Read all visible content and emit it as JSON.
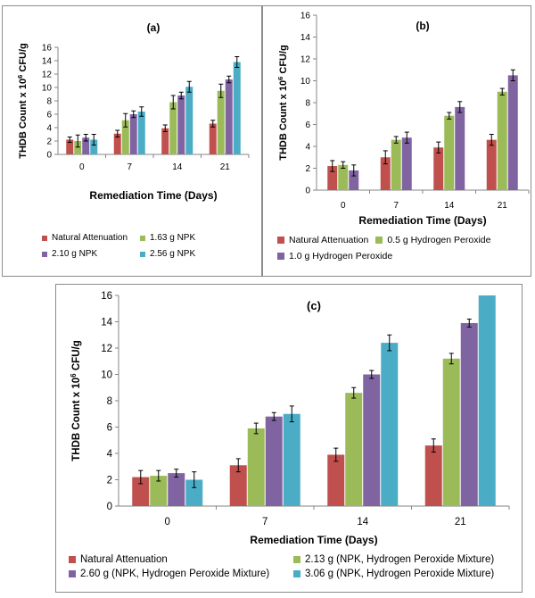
{
  "colors": {
    "red": "#c0504d",
    "green": "#9bbb59",
    "purple": "#8064a2",
    "cyan": "#4bacc6",
    "axis": "#868686",
    "errorbar": "#000000"
  },
  "chart_data": [
    {
      "id": "a",
      "type": "bar",
      "title": "(a)",
      "xlabel": "Remediation Time (Days)",
      "ylabel_prefix": "THDB Count x 10",
      "ylabel_exponent": "6",
      "ylabel_suffix": " CFU/g",
      "categories": [
        "0",
        "7",
        "14",
        "21"
      ],
      "ylim": [
        0,
        16
      ],
      "yticks": [
        "0",
        "2",
        "4",
        "6",
        "8",
        "10",
        "12",
        "14",
        "16"
      ],
      "grid": false,
      "legend_position": "bottom",
      "series": [
        {
          "name": "Natural Attenuation",
          "color": "red",
          "values": [
            2.2,
            3.1,
            3.9,
            4.6
          ],
          "errors": [
            0.4,
            0.5,
            0.5,
            0.5
          ]
        },
        {
          "name": "1.63 g NPK",
          "color": "green",
          "values": [
            2.0,
            5.1,
            7.8,
            9.5
          ],
          "errors": [
            0.9,
            1.0,
            1.0,
            1.0
          ]
        },
        {
          "name": "2.10 g NPK",
          "color": "purple",
          "values": [
            2.5,
            6.0,
            8.8,
            11.2
          ],
          "errors": [
            0.5,
            0.5,
            0.5,
            0.5
          ]
        },
        {
          "name": "2.56 g NPK",
          "color": "cyan",
          "values": [
            2.2,
            6.4,
            10.1,
            13.8
          ],
          "errors": [
            0.8,
            0.7,
            0.8,
            0.8
          ]
        }
      ]
    },
    {
      "id": "b",
      "type": "bar",
      "title": "(b)",
      "xlabel": "Remediation Time (Days)",
      "ylabel_prefix": "THDB Count x 10",
      "ylabel_exponent": "6",
      "ylabel_suffix": " CFU/g",
      "categories": [
        "0",
        "7",
        "14",
        "21"
      ],
      "ylim": [
        0,
        16
      ],
      "yticks": [
        "0",
        "2",
        "4",
        "6",
        "8",
        "10",
        "12",
        "14",
        "16"
      ],
      "grid": false,
      "legend_position": "bottom",
      "series": [
        {
          "name": "Natural Attenuation",
          "color": "red",
          "values": [
            2.2,
            3.0,
            3.9,
            4.6
          ],
          "errors": [
            0.5,
            0.6,
            0.5,
            0.5
          ]
        },
        {
          "name": "0.5 g Hydrogen Peroxide",
          "color": "green",
          "values": [
            2.3,
            4.6,
            6.8,
            9.0
          ],
          "errors": [
            0.3,
            0.3,
            0.3,
            0.3
          ]
        },
        {
          "name": "1.0 g Hydrogen Peroxide",
          "color": "purple",
          "values": [
            1.8,
            4.8,
            7.6,
            10.5
          ],
          "errors": [
            0.5,
            0.5,
            0.5,
            0.5
          ]
        }
      ]
    },
    {
      "id": "c",
      "type": "bar",
      "title": "(c)",
      "xlabel": "Remediation Time (Days)",
      "ylabel_prefix": "THDB Count x 10",
      "ylabel_exponent": "6",
      "ylabel_suffix": " CFU/g",
      "categories": [
        "0",
        "7",
        "14",
        "21"
      ],
      "ylim": [
        0,
        16
      ],
      "yticks": [
        "0",
        "2",
        "4",
        "6",
        "8",
        "10",
        "12",
        "14",
        "16"
      ],
      "grid": false,
      "legend_position": "bottom",
      "series": [
        {
          "name": "Natural Attenuation",
          "color": "red",
          "values": [
            2.2,
            3.1,
            3.9,
            4.6
          ],
          "errors": [
            0.5,
            0.5,
            0.5,
            0.5
          ]
        },
        {
          "name": "2.13 g (NPK, Hydrogen Peroxide Mixture)",
          "color": "green",
          "values": [
            2.3,
            5.9,
            8.6,
            11.2
          ],
          "errors": [
            0.4,
            0.4,
            0.4,
            0.4
          ]
        },
        {
          "name": "2.60 g (NPK, Hydrogen Peroxide Mixture)",
          "color": "purple",
          "values": [
            2.5,
            6.8,
            10.0,
            13.9
          ],
          "errors": [
            0.3,
            0.3,
            0.3,
            0.3
          ]
        },
        {
          "name": "3.06 g (NPK, Hydrogen Peroxide Mixture)",
          "color": "cyan",
          "values": [
            2.0,
            7.0,
            12.4,
            16.0
          ],
          "errors": [
            0.6,
            0.6,
            0.6,
            0
          ]
        }
      ]
    }
  ]
}
